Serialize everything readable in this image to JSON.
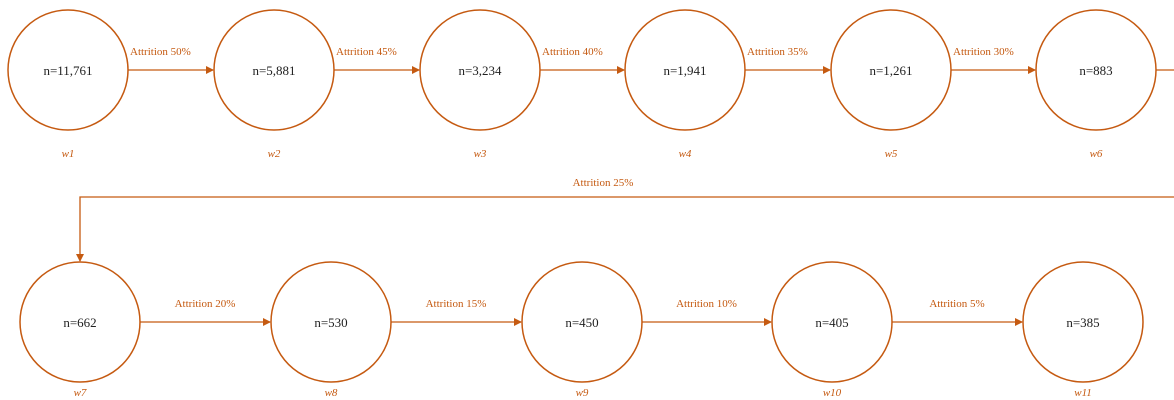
{
  "colors": {
    "accent": "#c55a11",
    "node_text": "#1f1f1f",
    "background": "#ffffff"
  },
  "nodes": [
    {
      "id": "w1",
      "label": "n=11,761",
      "wave": "w1"
    },
    {
      "id": "w2",
      "label": "n=5,881",
      "wave": "w2"
    },
    {
      "id": "w3",
      "label": "n=3,234",
      "wave": "w3"
    },
    {
      "id": "w4",
      "label": "n=1,941",
      "wave": "w4"
    },
    {
      "id": "w5",
      "label": "n=1,261",
      "wave": "w5"
    },
    {
      "id": "w6",
      "label": "n=883",
      "wave": "w6"
    },
    {
      "id": "w7",
      "label": "n=662",
      "wave": "w7"
    },
    {
      "id": "w8",
      "label": "n=530",
      "wave": "w8"
    },
    {
      "id": "w9",
      "label": "n=450",
      "wave": "w9"
    },
    {
      "id": "w10",
      "label": "n=405",
      "wave": "w10"
    },
    {
      "id": "w11",
      "label": "n=385",
      "wave": "w11"
    }
  ],
  "edges": [
    {
      "from": "w1",
      "to": "w2",
      "label": "Attrition  50%"
    },
    {
      "from": "w2",
      "to": "w3",
      "label": "Attrition  45%"
    },
    {
      "from": "w3",
      "to": "w4",
      "label": "Attrition  40%"
    },
    {
      "from": "w4",
      "to": "w5",
      "label": "Attrition  35%"
    },
    {
      "from": "w5",
      "to": "w6",
      "label": "Attrition  30%"
    },
    {
      "from": "w6",
      "to": "w7",
      "label": "Attrition  25%"
    },
    {
      "from": "w7",
      "to": "w8",
      "label": "Attrition  20%"
    },
    {
      "from": "w8",
      "to": "w9",
      "label": "Attrition  15%"
    },
    {
      "from": "w9",
      "to": "w10",
      "label": "Attrition  10%"
    },
    {
      "from": "w10",
      "to": "w11",
      "label": "Attrition  5%"
    }
  ]
}
